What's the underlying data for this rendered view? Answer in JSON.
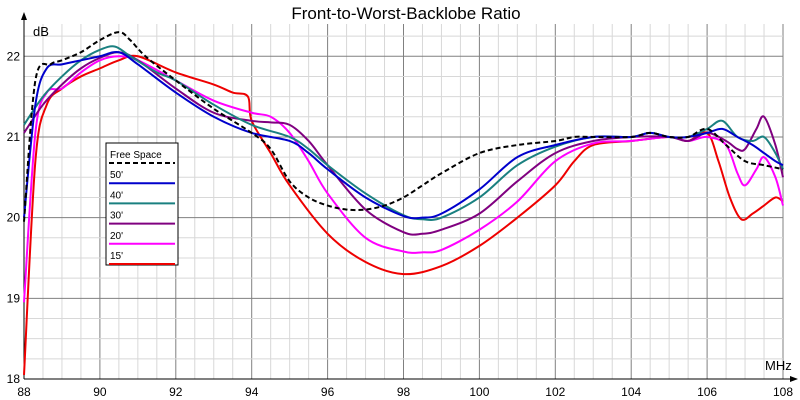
{
  "chart_data": {
    "type": "line",
    "title": "Front-to-Worst-Backlobe Ratio",
    "xlabel": "MHz",
    "ylabel": "dB",
    "xlim": [
      88,
      108
    ],
    "ylim": [
      18,
      22.4
    ],
    "xticks": [
      88,
      90,
      92,
      94,
      96,
      98,
      100,
      102,
      104,
      106,
      108
    ],
    "xtick_labels": [
      "88",
      "90",
      "92",
      "94",
      "96",
      "98",
      "100",
      "102",
      "104",
      "106",
      "108"
    ],
    "yticks": [
      18,
      19,
      20,
      21,
      22
    ],
    "ytick_labels": [
      "18",
      "19",
      "20",
      "21",
      "22"
    ],
    "x_minor_step": 0.5,
    "y_minor_step": 0.25,
    "grid": true,
    "legend_position": "left",
    "series": [
      {
        "name": "Free Space",
        "color": "#000000",
        "dash": "5,3",
        "x": [
          88,
          88.3,
          88.7,
          89.0,
          89.5,
          90.0,
          90.5,
          90.8,
          91.2,
          92.0,
          93.0,
          94.0,
          94.5,
          95.0,
          95.5,
          96.0,
          96.5,
          97.0,
          97.5,
          98.0,
          98.5,
          99.0,
          100.0,
          101.0,
          102.0,
          102.5,
          103.0,
          104.0,
          104.5,
          105.0,
          105.5,
          106.0,
          106.5,
          107.0,
          107.5,
          108.0
        ],
        "y": [
          19.95,
          21.7,
          21.9,
          21.95,
          22.05,
          22.2,
          22.3,
          22.2,
          22.0,
          21.7,
          21.35,
          21.05,
          20.85,
          20.45,
          20.25,
          20.15,
          20.1,
          20.1,
          20.15,
          20.25,
          20.4,
          20.55,
          20.8,
          20.9,
          20.95,
          21.0,
          21.0,
          21.0,
          21.05,
          21.0,
          21.0,
          21.1,
          20.9,
          20.7,
          20.65,
          20.6
        ]
      },
      {
        "name": "50'",
        "color": "#0000cc",
        "x": [
          88,
          88.3,
          88.6,
          89.0,
          89.5,
          90.0,
          90.5,
          91.0,
          92.0,
          93.0,
          94.0,
          95.0,
          95.5,
          96.0,
          97.0,
          98.0,
          98.5,
          99.0,
          100.0,
          101.0,
          102.0,
          103.0,
          104.0,
          104.5,
          105.0,
          105.5,
          106.0,
          106.4,
          106.8,
          107.2,
          107.5,
          107.8,
          108.0
        ],
        "y": [
          20.0,
          21.4,
          21.85,
          21.9,
          21.95,
          22.0,
          22.05,
          21.9,
          21.55,
          21.25,
          21.05,
          20.95,
          20.8,
          20.6,
          20.25,
          20.02,
          20.0,
          20.05,
          20.35,
          20.75,
          20.9,
          21.0,
          21.0,
          21.05,
          21.0,
          21.0,
          21.05,
          21.1,
          21.0,
          20.9,
          20.8,
          20.7,
          20.65
        ]
      },
      {
        "name": "40'",
        "color": "#1a8080",
        "x": [
          88,
          88.5,
          89.0,
          89.5,
          90.0,
          90.4,
          90.8,
          91.5,
          92.0,
          93.0,
          94.0,
          95.0,
          95.5,
          96.0,
          97.0,
          98.0,
          98.5,
          99.0,
          100.0,
          101.0,
          102.0,
          103.0,
          104.0,
          104.5,
          105.0,
          105.5,
          106.0,
          106.4,
          106.8,
          107.2,
          107.5,
          107.8,
          108.0
        ],
        "y": [
          21.15,
          21.5,
          21.75,
          21.95,
          22.08,
          22.12,
          22.0,
          21.8,
          21.7,
          21.4,
          21.15,
          21.0,
          20.85,
          20.65,
          20.3,
          20.03,
          19.98,
          20.0,
          20.25,
          20.65,
          20.88,
          21.0,
          21.0,
          21.05,
          21.0,
          21.0,
          21.1,
          21.2,
          21.0,
          20.95,
          21.0,
          20.8,
          20.6
        ]
      },
      {
        "name": "30'",
        "color": "#800080",
        "x": [
          88,
          88.5,
          89.0,
          89.5,
          90.0,
          90.5,
          91.0,
          92.0,
          93.0,
          94.0,
          94.5,
          95.0,
          95.5,
          96.0,
          97.0,
          98.0,
          98.5,
          99.0,
          100.0,
          101.0,
          102.0,
          103.0,
          104.0,
          105.0,
          105.5,
          106.0,
          106.5,
          106.8,
          107.0,
          107.3,
          107.5,
          107.8,
          108.0
        ],
        "y": [
          21.05,
          21.4,
          21.65,
          21.85,
          21.98,
          22.05,
          21.95,
          21.6,
          21.3,
          21.2,
          21.18,
          21.15,
          20.95,
          20.65,
          20.1,
          19.82,
          19.8,
          19.85,
          20.05,
          20.45,
          20.8,
          20.95,
          21.0,
          21.0,
          20.95,
          21.05,
          20.95,
          20.85,
          20.85,
          21.1,
          21.25,
          20.9,
          20.5
        ]
      },
      {
        "name": "20'",
        "color": "#ff00ff",
        "x": [
          88,
          88.3,
          88.6,
          89.0,
          89.5,
          90.0,
          90.5,
          91.0,
          92.0,
          93.0,
          94.0,
          94.5,
          95.0,
          95.5,
          96.0,
          97.0,
          98.0,
          98.5,
          99.0,
          100.0,
          101.0,
          102.0,
          103.0,
          104.0,
          105.0,
          105.5,
          106.0,
          106.5,
          106.8,
          107.0,
          107.3,
          107.5,
          107.8,
          108.0
        ],
        "y": [
          18.95,
          21.05,
          21.55,
          21.6,
          21.8,
          21.95,
          22.0,
          21.95,
          21.7,
          21.45,
          21.3,
          21.25,
          21.05,
          20.7,
          20.3,
          19.75,
          19.58,
          19.57,
          19.6,
          19.85,
          20.2,
          20.7,
          20.92,
          20.95,
          21.0,
          20.95,
          21.0,
          20.9,
          20.55,
          20.4,
          20.6,
          20.75,
          20.5,
          20.15
        ]
      },
      {
        "name": "15'",
        "color": "#ee0000",
        "x": [
          88,
          88.3,
          88.6,
          89.0,
          89.5,
          90.0,
          90.5,
          91.0,
          92.0,
          93.0,
          93.5,
          93.9,
          94.0,
          94.5,
          95.0,
          96.0,
          97.0,
          98.0,
          99.0,
          100.0,
          101.0,
          102.0,
          102.5,
          103.0,
          104.0,
          105.0,
          105.5,
          106.0,
          106.3,
          106.6,
          106.9,
          107.2,
          107.5,
          107.8,
          108.0
        ],
        "y": [
          18.05,
          20.7,
          21.4,
          21.6,
          21.75,
          21.85,
          21.95,
          22.0,
          21.8,
          21.65,
          21.55,
          21.5,
          21.2,
          20.8,
          20.4,
          19.8,
          19.45,
          19.3,
          19.4,
          19.65,
          20.0,
          20.4,
          20.7,
          20.9,
          20.95,
          21.0,
          20.95,
          21.05,
          20.7,
          20.25,
          19.98,
          20.05,
          20.15,
          20.25,
          20.2
        ]
      }
    ]
  }
}
